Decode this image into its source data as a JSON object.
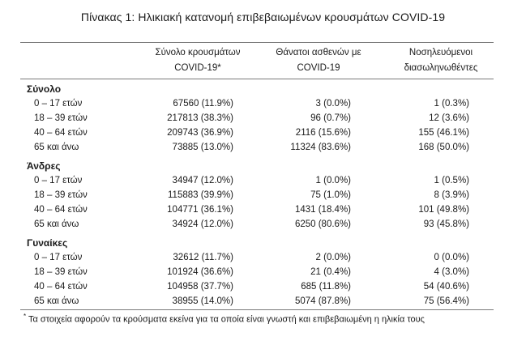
{
  "title": "Πίνακας 1: Ηλικιακή κατανομή επιβεβαιωμένων κρουσμάτων COVID-19",
  "columns": [
    {
      "line1": "Σύνολο κρουσμάτων",
      "line2": "COVID-19*"
    },
    {
      "line1": "Θάνατοι ασθενών με",
      "line2": "COVID-19"
    },
    {
      "line1": "Νοσηλευόμενοι",
      "line2": "διασωληνωθέντες"
    }
  ],
  "sections": [
    {
      "label": "Σύνολο",
      "rows": [
        {
          "age": "0 – 17 ετών",
          "cases": "67560 (11.9%)",
          "deaths": "3 (0.0%)",
          "intubated": "1 (0.3%)"
        },
        {
          "age": "18 – 39 ετών",
          "cases": "217813 (38.3%)",
          "deaths": "96 (0.7%)",
          "intubated": "12 (3.6%)"
        },
        {
          "age": "40 – 64 ετών",
          "cases": "209743 (36.9%)",
          "deaths": "2116 (15.6%)",
          "intubated": "155 (46.1%)"
        },
        {
          "age": "65 και άνω",
          "cases": "73885 (13.0%)",
          "deaths": "11324 (83.6%)",
          "intubated": "168 (50.0%)"
        }
      ]
    },
    {
      "label": "Άνδρες",
      "rows": [
        {
          "age": "0 – 17 ετών",
          "cases": "34947 (12.0%)",
          "deaths": "1 (0.0%)",
          "intubated": "1 (0.5%)"
        },
        {
          "age": "18 – 39 ετών",
          "cases": "115883 (39.9%)",
          "deaths": "75 (1.0%)",
          "intubated": "8 (3.9%)"
        },
        {
          "age": "40 – 64 ετών",
          "cases": "104771 (36.1%)",
          "deaths": "1431 (18.4%)",
          "intubated": "101 (49.8%)"
        },
        {
          "age": "65 και άνω",
          "cases": "34924 (12.0%)",
          "deaths": "6250 (80.6%)",
          "intubated": "93 (45.8%)"
        }
      ]
    },
    {
      "label": "Γυναίκες",
      "rows": [
        {
          "age": "0 – 17 ετών",
          "cases": "32612 (11.7%)",
          "deaths": "2 (0.0%)",
          "intubated": "0 (0.0%)"
        },
        {
          "age": "18 – 39 ετών",
          "cases": "101924 (36.6%)",
          "deaths": "21 (0.4%)",
          "intubated": "4 (3.0%)"
        },
        {
          "age": "40 – 64 ετών",
          "cases": "104958 (37.7%)",
          "deaths": "685 (11.8%)",
          "intubated": "54 (40.6%)"
        },
        {
          "age": "65 και άνω",
          "cases": "38955 (14.0%)",
          "deaths": "5074 (87.8%)",
          "intubated": "75 (56.4%)"
        }
      ]
    }
  ],
  "footnote": {
    "marker": "*",
    "text": "Τα στοιχεία αφορούν τα κρούσματα εκείνα για τα οποία είναι γνωστή και επιβεβαιωμένη η ηλικία τους"
  }
}
